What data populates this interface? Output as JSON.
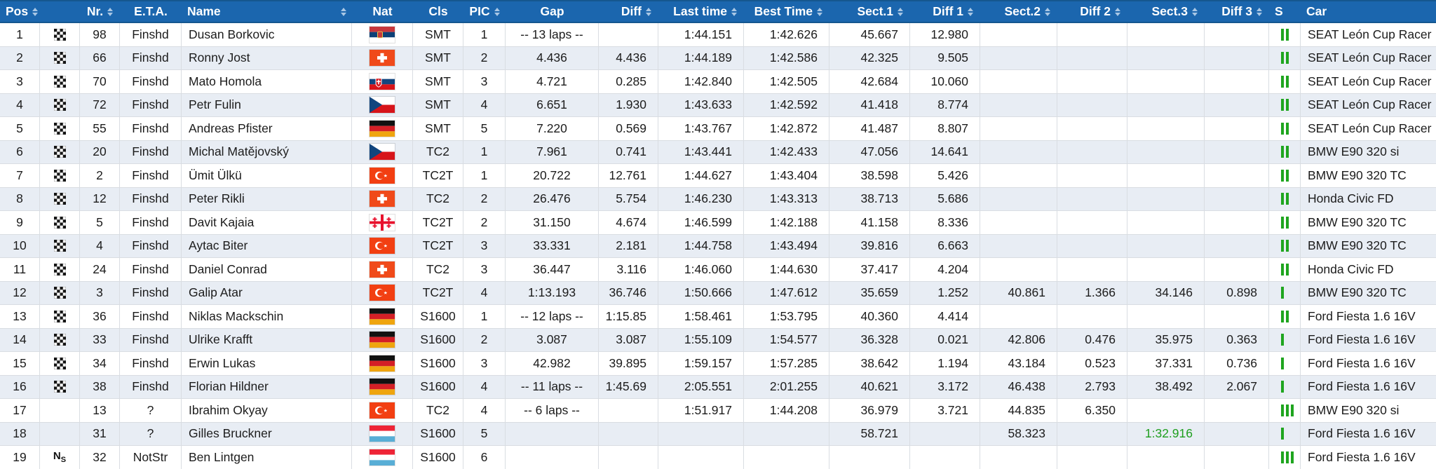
{
  "colors": {
    "header_bg": "#1b66ae",
    "header_text": "#ffffff",
    "row_alt_bg": "#e8edf4",
    "status_bar_green": "#1fa51f",
    "highlight_green_time": "#1e9e1e",
    "sort_arrow": "#a9c7e5"
  },
  "header": {
    "columns": [
      {
        "id": "pos",
        "label": "Pos",
        "sortable": true,
        "align": "left",
        "dalign": "center"
      },
      {
        "id": "finish",
        "label": "",
        "sortable": false,
        "align": "center",
        "dalign": "center"
      },
      {
        "id": "nr",
        "label": "Nr.",
        "sortable": true,
        "align": "center",
        "dalign": "center"
      },
      {
        "id": "eta",
        "label": "E.T.A.",
        "sortable": false,
        "align": "center",
        "dalign": "center"
      },
      {
        "id": "name",
        "label": "Name",
        "sortable": true,
        "sortRight": true,
        "align": "left",
        "dalign": "left"
      },
      {
        "id": "nat",
        "label": "Nat",
        "sortable": false,
        "align": "center",
        "dalign": "center"
      },
      {
        "id": "cls",
        "label": "Cls",
        "sortable": false,
        "align": "center",
        "dalign": "center"
      },
      {
        "id": "pic",
        "label": "PIC",
        "sortable": true,
        "align": "center",
        "dalign": "center"
      },
      {
        "id": "gap",
        "label": "Gap",
        "sortable": false,
        "align": "center",
        "dalign": "center"
      },
      {
        "id": "diff",
        "label": "Diff",
        "sortable": true,
        "align": "right",
        "dalign": "right"
      },
      {
        "id": "last",
        "label": "Last time",
        "sortable": true,
        "align": "right",
        "dalign": "right"
      },
      {
        "id": "best",
        "label": "Best Time",
        "sortable": true,
        "align": "right",
        "dalign": "right"
      },
      {
        "id": "s1",
        "label": "Sect.1",
        "sortable": true,
        "align": "right",
        "dalign": "right"
      },
      {
        "id": "d1",
        "label": "Diff 1",
        "sortable": true,
        "align": "right",
        "dalign": "right"
      },
      {
        "id": "s2",
        "label": "Sect.2",
        "sortable": true,
        "align": "right",
        "dalign": "right"
      },
      {
        "id": "d2",
        "label": "Diff 2",
        "sortable": true,
        "align": "right",
        "dalign": "right"
      },
      {
        "id": "s3",
        "label": "Sect.3",
        "sortable": true,
        "align": "right",
        "dalign": "right"
      },
      {
        "id": "d3",
        "label": "Diff 3",
        "sortable": true,
        "align": "right",
        "dalign": "right"
      },
      {
        "id": "s",
        "label": "S",
        "sortable": false,
        "align": "left",
        "dalign": "left"
      },
      {
        "id": "car",
        "label": "Car",
        "sortable": false,
        "align": "left",
        "dalign": "left"
      }
    ]
  },
  "rows": [
    {
      "pos": "1",
      "finish": "checkered",
      "nr": "98",
      "eta": "Finshd",
      "name": "Dusan Borkovic",
      "nat": "rs",
      "cls": "SMT",
      "pic": "1",
      "gap": "-- 13 laps --",
      "diff": "",
      "last": "1:44.151",
      "best": "1:42.626",
      "s1": "45.667",
      "d1": "12.980",
      "s2": "",
      "d2": "",
      "s3": "",
      "d3": "",
      "bars": 2,
      "car": "SEAT León Cup Racer"
    },
    {
      "pos": "2",
      "finish": "checkered",
      "nr": "66",
      "eta": "Finshd",
      "name": "Ronny Jost",
      "nat": "ch",
      "cls": "SMT",
      "pic": "2",
      "gap": "4.436",
      "diff": "4.436",
      "last": "1:44.189",
      "best": "1:42.586",
      "s1": "42.325",
      "d1": "9.505",
      "s2": "",
      "d2": "",
      "s3": "",
      "d3": "",
      "bars": 2,
      "car": "SEAT León Cup Racer"
    },
    {
      "pos": "3",
      "finish": "checkered",
      "nr": "70",
      "eta": "Finshd",
      "name": "Mato Homola",
      "nat": "sk",
      "cls": "SMT",
      "pic": "3",
      "gap": "4.721",
      "diff": "0.285",
      "last": "1:42.840",
      "best": "1:42.505",
      "s1": "42.684",
      "d1": "10.060",
      "s2": "",
      "d2": "",
      "s3": "",
      "d3": "",
      "bars": 2,
      "car": "SEAT León Cup Racer"
    },
    {
      "pos": "4",
      "finish": "checkered",
      "nr": "72",
      "eta": "Finshd",
      "name": "Petr Fulin",
      "nat": "cz",
      "cls": "SMT",
      "pic": "4",
      "gap": "6.651",
      "diff": "1.930",
      "last": "1:43.633",
      "best": "1:42.592",
      "s1": "41.418",
      "d1": "8.774",
      "s2": "",
      "d2": "",
      "s3": "",
      "d3": "",
      "bars": 2,
      "car": "SEAT León Cup Racer"
    },
    {
      "pos": "5",
      "finish": "checkered",
      "nr": "55",
      "eta": "Finshd",
      "name": "Andreas Pfister",
      "nat": "de",
      "cls": "SMT",
      "pic": "5",
      "gap": "7.220",
      "diff": "0.569",
      "last": "1:43.767",
      "best": "1:42.872",
      "s1": "41.487",
      "d1": "8.807",
      "s2": "",
      "d2": "",
      "s3": "",
      "d3": "",
      "bars": 2,
      "car": "SEAT León Cup Racer"
    },
    {
      "pos": "6",
      "finish": "checkered",
      "nr": "20",
      "eta": "Finshd",
      "name": "Michal Matějovský",
      "nat": "cz",
      "cls": "TC2",
      "pic": "1",
      "gap": "7.961",
      "diff": "0.741",
      "last": "1:43.441",
      "best": "1:42.433",
      "s1": "47.056",
      "d1": "14.641",
      "s2": "",
      "d2": "",
      "s3": "",
      "d3": "",
      "bars": 2,
      "car": "BMW E90 320 si"
    },
    {
      "pos": "7",
      "finish": "checkered",
      "nr": "2",
      "eta": "Finshd",
      "name": "Ümit Ülkü",
      "nat": "tr",
      "cls": "TC2T",
      "pic": "1",
      "gap": "20.722",
      "diff": "12.761",
      "last": "1:44.627",
      "best": "1:43.404",
      "s1": "38.598",
      "d1": "5.426",
      "s2": "",
      "d2": "",
      "s3": "",
      "d3": "",
      "bars": 2,
      "car": "BMW E90 320 TC"
    },
    {
      "pos": "8",
      "finish": "checkered",
      "nr": "12",
      "eta": "Finshd",
      "name": "Peter Rikli",
      "nat": "ch",
      "cls": "TC2",
      "pic": "2",
      "gap": "26.476",
      "diff": "5.754",
      "last": "1:46.230",
      "best": "1:43.313",
      "s1": "38.713",
      "d1": "5.686",
      "s2": "",
      "d2": "",
      "s3": "",
      "d3": "",
      "bars": 2,
      "car": "Honda Civic FD"
    },
    {
      "pos": "9",
      "finish": "checkered",
      "nr": "5",
      "eta": "Finshd",
      "name": "Davit Kajaia",
      "nat": "ge",
      "cls": "TC2T",
      "pic": "2",
      "gap": "31.150",
      "diff": "4.674",
      "last": "1:46.599",
      "best": "1:42.188",
      "s1": "41.158",
      "d1": "8.336",
      "s2": "",
      "d2": "",
      "s3": "",
      "d3": "",
      "bars": 2,
      "car": "BMW E90 320 TC"
    },
    {
      "pos": "10",
      "finish": "checkered",
      "nr": "4",
      "eta": "Finshd",
      "name": "Aytac Biter",
      "nat": "tr",
      "cls": "TC2T",
      "pic": "3",
      "gap": "33.331",
      "diff": "2.181",
      "last": "1:44.758",
      "best": "1:43.494",
      "s1": "39.816",
      "d1": "6.663",
      "s2": "",
      "d2": "",
      "s3": "",
      "d3": "",
      "bars": 2,
      "car": "BMW E90 320 TC"
    },
    {
      "pos": "11",
      "finish": "checkered",
      "nr": "24",
      "eta": "Finshd",
      "name": "Daniel Conrad",
      "nat": "ch",
      "cls": "TC2",
      "pic": "3",
      "gap": "36.447",
      "diff": "3.116",
      "last": "1:46.060",
      "best": "1:44.630",
      "s1": "37.417",
      "d1": "4.204",
      "s2": "",
      "d2": "",
      "s3": "",
      "d3": "",
      "bars": 2,
      "car": "Honda Civic FD"
    },
    {
      "pos": "12",
      "finish": "checkered",
      "nr": "3",
      "eta": "Finshd",
      "name": "Galip Atar",
      "nat": "tr",
      "cls": "TC2T",
      "pic": "4",
      "gap": "1:13.193",
      "diff": "36.746",
      "last": "1:50.666",
      "best": "1:47.612",
      "s1": "35.659",
      "d1": "1.252",
      "s2": "40.861",
      "d2": "1.366",
      "s3": "34.146",
      "d3": "0.898",
      "bars": 1,
      "car": "BMW E90 320 TC"
    },
    {
      "pos": "13",
      "finish": "checkered",
      "nr": "36",
      "eta": "Finshd",
      "name": "Niklas Mackschin",
      "nat": "de",
      "cls": "S1600",
      "pic": "1",
      "gap": "-- 12 laps --",
      "diff": "1:15.85",
      "last": "1:58.461",
      "best": "1:53.795",
      "s1": "40.360",
      "d1": "4.414",
      "s2": "",
      "d2": "",
      "s3": "",
      "d3": "",
      "bars": 2,
      "car": "Ford Fiesta 1.6 16V"
    },
    {
      "pos": "14",
      "finish": "checkered",
      "nr": "33",
      "eta": "Finshd",
      "name": "Ulrike Krafft",
      "nat": "de",
      "cls": "S1600",
      "pic": "2",
      "gap": "3.087",
      "diff": "3.087",
      "last": "1:55.109",
      "best": "1:54.577",
      "s1": "36.328",
      "d1": "0.021",
      "s2": "42.806",
      "d2": "0.476",
      "s3": "35.975",
      "d3": "0.363",
      "bars": 1,
      "car": "Ford Fiesta 1.6 16V"
    },
    {
      "pos": "15",
      "finish": "checkered",
      "nr": "34",
      "eta": "Finshd",
      "name": "Erwin Lukas",
      "nat": "de",
      "cls": "S1600",
      "pic": "3",
      "gap": "42.982",
      "diff": "39.895",
      "last": "1:59.157",
      "best": "1:57.285",
      "s1": "38.642",
      "d1": "1.194",
      "s2": "43.184",
      "d2": "0.523",
      "s3": "37.331",
      "d3": "0.736",
      "bars": 1,
      "car": "Ford Fiesta 1.6 16V"
    },
    {
      "pos": "16",
      "finish": "checkered",
      "nr": "38",
      "eta": "Finshd",
      "name": "Florian Hildner",
      "nat": "de",
      "cls": "S1600",
      "pic": "4",
      "gap": "-- 11 laps --",
      "diff": "1:45.69",
      "last": "2:05.551",
      "best": "2:01.255",
      "s1": "40.621",
      "d1": "3.172",
      "s2": "46.438",
      "d2": "2.793",
      "s3": "38.492",
      "d3": "2.067",
      "bars": 1,
      "car": "Ford Fiesta 1.6 16V"
    },
    {
      "pos": "17",
      "finish": "",
      "nr": "13",
      "eta": "?",
      "name": "Ibrahim Okyay",
      "nat": "tr",
      "cls": "TC2",
      "pic": "4",
      "gap": "-- 6 laps --",
      "diff": "",
      "last": "1:51.917",
      "best": "1:44.208",
      "s1": "36.979",
      "d1": "3.721",
      "s2": "44.835",
      "d2": "6.350",
      "s3": "",
      "d3": "",
      "bars": 3,
      "car": "BMW E90 320 si"
    },
    {
      "pos": "18",
      "finish": "",
      "nr": "31",
      "eta": "?",
      "name": "Gilles Bruckner",
      "nat": "lu",
      "cls": "S1600",
      "pic": "5",
      "gap": "",
      "diff": "",
      "last": "",
      "best": "",
      "s1": "58.721",
      "d1": "",
      "s2": "58.323",
      "d2": "",
      "s3": "1:32.916",
      "s3_green": true,
      "d3": "",
      "bars": 1,
      "car": "Ford Fiesta 1.6 16V"
    },
    {
      "pos": "19",
      "finish": "ns",
      "nr": "32",
      "eta": "NotStr",
      "name": "Ben Lintgen",
      "nat": "lu",
      "cls": "S1600",
      "pic": "6",
      "gap": "",
      "diff": "",
      "last": "",
      "best": "",
      "s1": "",
      "d1": "",
      "s2": "",
      "d2": "",
      "s3": "",
      "d3": "",
      "bars": 3,
      "car": "Ford Fiesta 1.6 16V"
    }
  ]
}
